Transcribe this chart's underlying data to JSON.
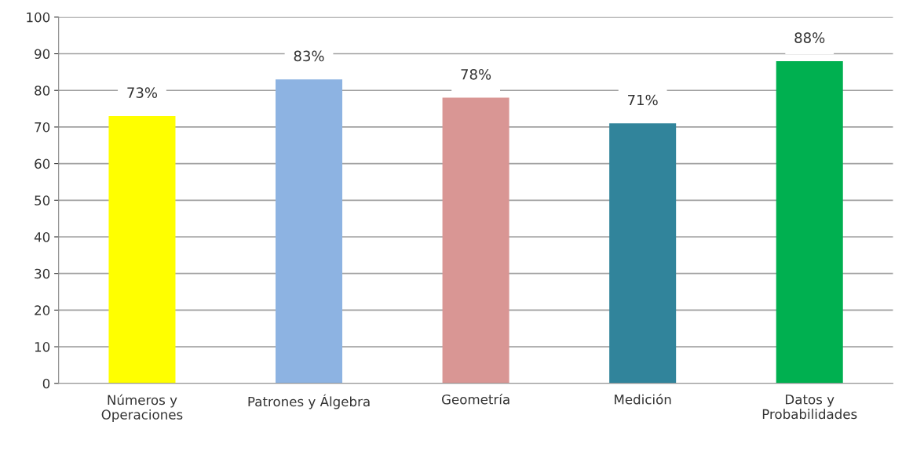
{
  "chart_data": {
    "type": "bar",
    "categories": [
      "Números y\nOperaciones",
      "Patrones y Álgebra",
      "Geometría",
      "Medición",
      "Datos y\nProbabilidades"
    ],
    "values": [
      73,
      83,
      78,
      71,
      88
    ],
    "colors": [
      "#ffff00",
      "#8db3e2",
      "#d99694",
      "#31849b",
      "#00b050"
    ],
    "value_labels": [
      "73%",
      "83%",
      "78%",
      "71%",
      "88%"
    ],
    "ylim": [
      0,
      100
    ],
    "yticks": [
      0,
      10,
      20,
      30,
      40,
      50,
      60,
      70,
      80,
      90,
      100
    ],
    "grid": "y"
  }
}
